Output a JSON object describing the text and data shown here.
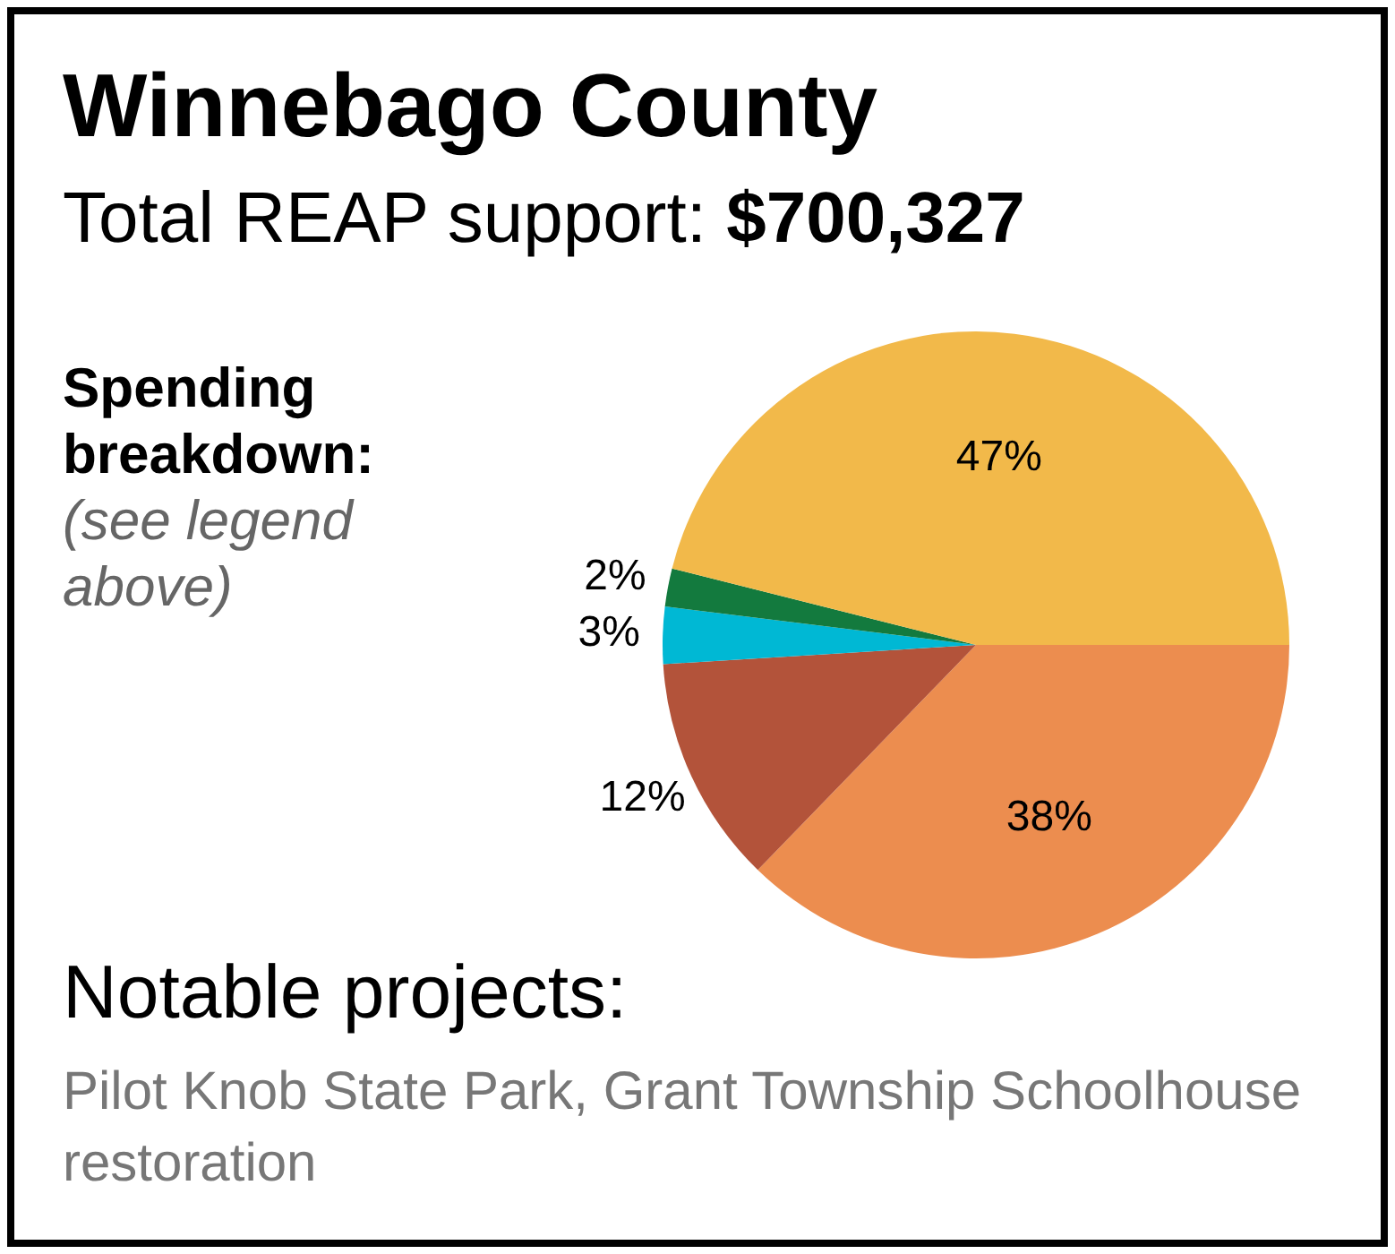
{
  "chart_data": {
    "type": "pie",
    "title": "Winnebago County",
    "subtitle": "Total REAP support: $700,327",
    "categories": [
      null,
      null,
      null,
      null,
      null
    ],
    "values": [
      38,
      12,
      3,
      2,
      47
    ],
    "colors": [
      "#ec8d4f",
      "#b3533a",
      "#00b8d4",
      "#137a3e",
      "#f2b94a"
    ],
    "value_labels": [
      "38%",
      "12%",
      "3%",
      "2%",
      "47%"
    ],
    "legend": false,
    "annotations": [
      "Spending breakdown:",
      "(see legend above)",
      "Notable projects:",
      "Pilot Knob State Park, Grant Township Schoolhouse restoration"
    ]
  }
}
